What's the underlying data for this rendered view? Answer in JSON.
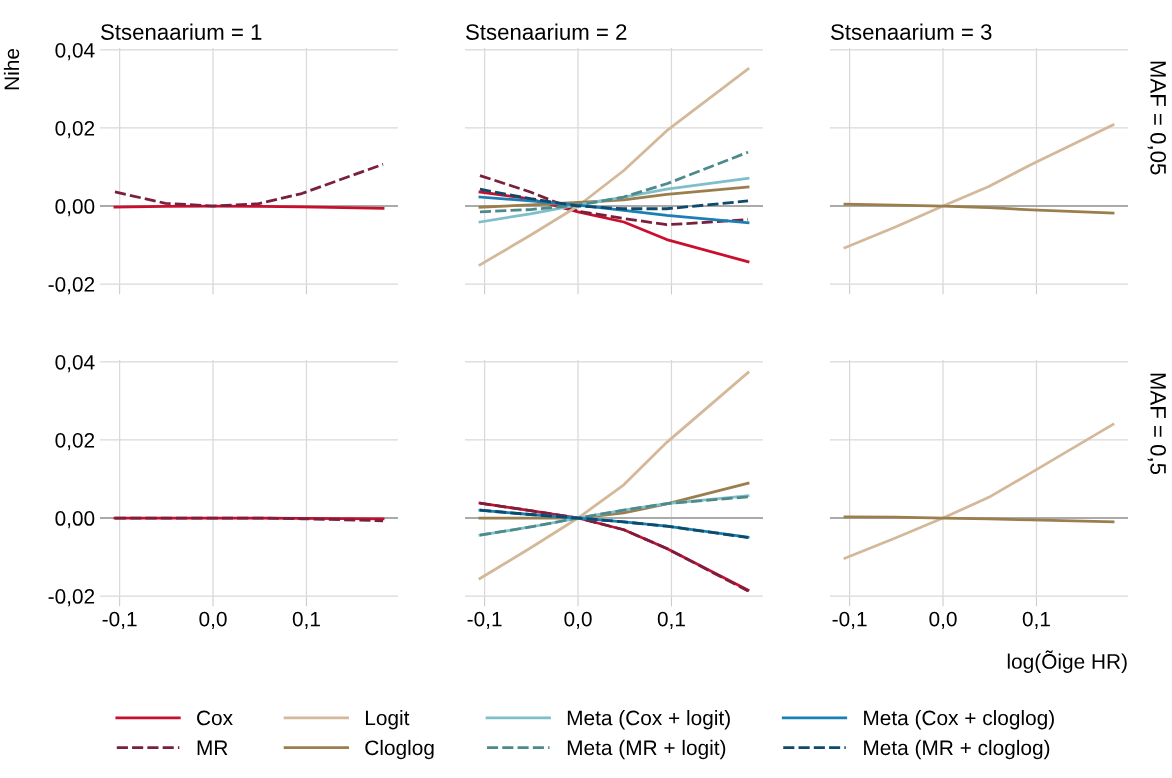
{
  "chart_data": [
    {
      "type": "line",
      "title": "Stsenaarium = 1",
      "ylabel": "Nihe",
      "x": [
        -0.105,
        -0.051,
        0,
        0.049,
        0.095,
        0.182
      ],
      "xlim": [
        -0.121,
        0.198
      ],
      "ylim": [
        -0.0205,
        0.0405
      ],
      "xticks": [
        {
          "value": -0.1,
          "label": null
        },
        {
          "value": 0,
          "label": null
        },
        {
          "value": 0.1,
          "label": null
        }
      ],
      "yticks": [
        {
          "value": -0.02,
          "label": "-0,02"
        },
        {
          "value": 0,
          "label": "0,00"
        },
        {
          "value": 0.02,
          "label": "0,02"
        },
        {
          "value": 0.04,
          "label": "0,04"
        }
      ],
      "grid": true,
      "tick_labels": "y",
      "ref_lines": [
        {
          "axis": "y",
          "value": 0,
          "color": "#aaaaaa"
        }
      ],
      "series": [
        {
          "color": "#c8102e",
          "line_style": "solid",
          "values": [
            -0.0003,
            -0.0001,
            0,
            -0.0001,
            -0.0002,
            -0.0006
          ]
        },
        {
          "color": "#7a1f3d",
          "line_style": "dashed",
          "values": [
            0.0036,
            0.0007,
            0,
            0.0006,
            0.0032,
            0.0107
          ]
        }
      ]
    },
    {
      "type": "line",
      "title": "Stsenaarium = 2",
      "x": [
        -0.105,
        -0.051,
        0,
        0.049,
        0.095,
        0.182
      ],
      "xlim": [
        -0.121,
        0.198
      ],
      "ylim": [
        -0.0205,
        0.0405
      ],
      "xticks": [
        {
          "value": -0.1,
          "label": null
        },
        {
          "value": 0,
          "label": null
        },
        {
          "value": 0.1,
          "label": null
        }
      ],
      "yticks": [
        {
          "value": -0.02,
          "label": null
        },
        {
          "value": 0,
          "label": null
        },
        {
          "value": 0.02,
          "label": null
        },
        {
          "value": 0.04,
          "label": null
        }
      ],
      "grid": true,
      "tick_labels": false,
      "ref_lines": [
        {
          "axis": "y",
          "value": 0,
          "color": "#aaaaaa"
        }
      ],
      "series": [
        {
          "color": "#c8102e",
          "line_style": "solid",
          "values": [
            0.0036,
            0.0018,
            -0.0015,
            -0.0041,
            -0.0086,
            -0.0143
          ]
        },
        {
          "color": "#7a1f3d",
          "line_style": "dashed",
          "values": [
            0.0078,
            0.0036,
            -0.0013,
            -0.0032,
            -0.0048,
            -0.0035
          ]
        },
        {
          "color": "#d4b89a",
          "line_style": "solid",
          "values": [
            -0.0151,
            -0.0075,
            0,
            0.0091,
            0.0193,
            0.0351
          ]
        },
        {
          "color": "#9b7e4e",
          "line_style": "solid",
          "values": [
            -0.0003,
            0.0003,
            0.0009,
            0.0016,
            0.003,
            0.0049
          ]
        },
        {
          "color": "#7fbfc9",
          "line_style": "solid",
          "values": [
            -0.0041,
            -0.002,
            0.0003,
            0.0023,
            0.0043,
            0.0071
          ]
        },
        {
          "color": "#4d8a8a",
          "line_style": "dashed",
          "values": [
            -0.0015,
            -0.0009,
            0.0002,
            0.0023,
            0.0057,
            0.0138
          ]
        },
        {
          "color": "#1a7fb5",
          "line_style": "solid",
          "values": [
            0.0023,
            0.0013,
            0.0002,
            -0.0011,
            -0.0024,
            -0.0043
          ]
        },
        {
          "color": "#0d4a6b",
          "line_style": "dashed",
          "values": [
            0.0043,
            0.0019,
            0,
            -0.0007,
            -0.0007,
            0.0013
          ]
        }
      ]
    },
    {
      "type": "line",
      "title": "Stsenaarium = 3",
      "annotations": [
        "MAF = 0,05"
      ],
      "x": [
        -0.105,
        -0.051,
        0,
        0.049,
        0.095,
        0.182
      ],
      "xlim": [
        -0.121,
        0.198
      ],
      "ylim": [
        -0.0205,
        0.0405
      ],
      "xticks": [
        {
          "value": -0.1,
          "label": null
        },
        {
          "value": 0,
          "label": null
        },
        {
          "value": 0.1,
          "label": null
        }
      ],
      "yticks": [
        {
          "value": -0.02,
          "label": null
        },
        {
          "value": 0,
          "label": null
        },
        {
          "value": 0.02,
          "label": null
        },
        {
          "value": 0.04,
          "label": null
        }
      ],
      "grid": true,
      "tick_labels": false,
      "ref_lines": [
        {
          "axis": "y",
          "value": 0,
          "color": "#aaaaaa"
        }
      ],
      "series": [
        {
          "color": "#d4b89a",
          "line_style": "solid",
          "values": [
            -0.0107,
            -0.0054,
            0,
            0.005,
            0.0107,
            0.0208
          ]
        },
        {
          "color": "#9b7e4e",
          "line_style": "solid",
          "values": [
            0.0005,
            0.0002,
            0,
            -0.0004,
            -0.001,
            -0.0018
          ]
        }
      ]
    },
    {
      "type": "line",
      "x": [
        -0.105,
        -0.051,
        0,
        0.049,
        0.095,
        0.182
      ],
      "xlim": [
        -0.121,
        0.198
      ],
      "ylim": [
        -0.0205,
        0.0405
      ],
      "xticks": [
        {
          "value": -0.1,
          "label": "-0,1"
        },
        {
          "value": 0,
          "label": "0,0"
        },
        {
          "value": 0.1,
          "label": "0,1"
        }
      ],
      "yticks": [
        {
          "value": -0.02,
          "label": "-0,02"
        },
        {
          "value": 0,
          "label": "0,00"
        },
        {
          "value": 0.02,
          "label": "0,02"
        },
        {
          "value": 0.04,
          "label": "0,04"
        }
      ],
      "grid": true,
      "ref_lines": [
        {
          "axis": "y",
          "value": 0,
          "color": "#aaaaaa"
        }
      ],
      "series": [
        {
          "color": "#c8102e",
          "line_style": "solid",
          "values": [
            0,
            0,
            0,
            0,
            -0.0001,
            -0.0002
          ]
        },
        {
          "color": "#7a1f3d",
          "line_style": "dashed",
          "values": [
            0,
            0,
            0,
            0,
            -0.0002,
            -0.0007
          ]
        }
      ]
    },
    {
      "type": "line",
      "legend": "bottom",
      "x": [
        -0.105,
        -0.051,
        0,
        0.049,
        0.095,
        0.182
      ],
      "xlim": [
        -0.121,
        0.198
      ],
      "ylim": [
        -0.0205,
        0.0405
      ],
      "xticks": [
        {
          "value": -0.1,
          "label": "-0,1"
        },
        {
          "value": 0,
          "label": "0,0"
        },
        {
          "value": 0.1,
          "label": "0,1"
        }
      ],
      "yticks": [
        {
          "value": -0.02,
          "label": null
        },
        {
          "value": 0,
          "label": null
        },
        {
          "value": 0.02,
          "label": null
        },
        {
          "value": 0.04,
          "label": null
        }
      ],
      "grid": true,
      "tick_labels": "x",
      "ref_lines": [
        {
          "axis": "y",
          "value": 0,
          "color": "#aaaaaa"
        }
      ],
      "series": [
        {
          "name": "Cox",
          "color": "#c8102e",
          "line_style": "solid",
          "values": [
            0.0038,
            0.0019,
            0,
            -0.003,
            -0.0078,
            -0.0185
          ]
        },
        {
          "name": "MR",
          "color": "#7a1f3d",
          "line_style": "dashed",
          "values": [
            0.0038,
            0.0019,
            0,
            -0.003,
            -0.0078,
            -0.0187
          ]
        },
        {
          "name": "Logit",
          "color": "#d4b89a",
          "line_style": "solid",
          "values": [
            -0.0155,
            -0.0077,
            0,
            0.0085,
            0.0194,
            0.0373
          ]
        },
        {
          "name": "Cloglog",
          "color": "#9b7e4e",
          "line_style": "solid",
          "values": [
            0,
            0,
            0,
            0.0013,
            0.0036,
            0.0089
          ]
        },
        {
          "name": "Meta (Cox + logit)",
          "color": "#7fbfc9",
          "line_style": "solid",
          "values": [
            -0.0044,
            -0.0023,
            0,
            0.002,
            0.0037,
            0.0057
          ]
        },
        {
          "name": "Meta (MR + logit)",
          "color": "#4d8a8a",
          "line_style": "dashed",
          "values": [
            -0.0044,
            -0.0023,
            0,
            0.002,
            0.0037,
            0.0054
          ]
        },
        {
          "name": "Meta (Cox + cloglog)",
          "color": "#1a7fb5",
          "line_style": "solid",
          "values": [
            0.002,
            0.0009,
            0,
            -0.001,
            -0.0021,
            -0.0049
          ]
        },
        {
          "name": "Meta (MR + cloglog)",
          "color": "#0d4a6b",
          "line_style": "dashed",
          "values": [
            0.002,
            0.0009,
            0,
            -0.001,
            -0.0021,
            -0.005
          ]
        }
      ]
    },
    {
      "type": "line",
      "xlabel": "log(Õige HR)",
      "annotations": [
        "MAF = 0,5"
      ],
      "x": [
        -0.105,
        -0.051,
        0,
        0.049,
        0.095,
        0.182
      ],
      "xlim": [
        -0.121,
        0.198
      ],
      "ylim": [
        -0.0205,
        0.0405
      ],
      "xticks": [
        {
          "value": -0.1,
          "label": "-0,1"
        },
        {
          "value": 0,
          "label": "0,0"
        },
        {
          "value": 0.1,
          "label": "0,1"
        }
      ],
      "yticks": [
        {
          "value": -0.02,
          "label": null
        },
        {
          "value": 0,
          "label": null
        },
        {
          "value": 0.02,
          "label": null
        },
        {
          "value": 0.04,
          "label": null
        }
      ],
      "grid": true,
      "tick_labels": "x",
      "ref_lines": [
        {
          "axis": "y",
          "value": 0,
          "color": "#aaaaaa"
        }
      ],
      "series": [
        {
          "color": "#d4b89a",
          "line_style": "solid",
          "values": [
            -0.0103,
            -0.0051,
            0,
            0.0053,
            0.0117,
            0.024
          ]
        },
        {
          "color": "#9b7e4e",
          "line_style": "solid",
          "values": [
            0.0003,
            0.0002,
            0,
            -0.0002,
            -0.0005,
            -0.001
          ]
        }
      ]
    }
  ]
}
